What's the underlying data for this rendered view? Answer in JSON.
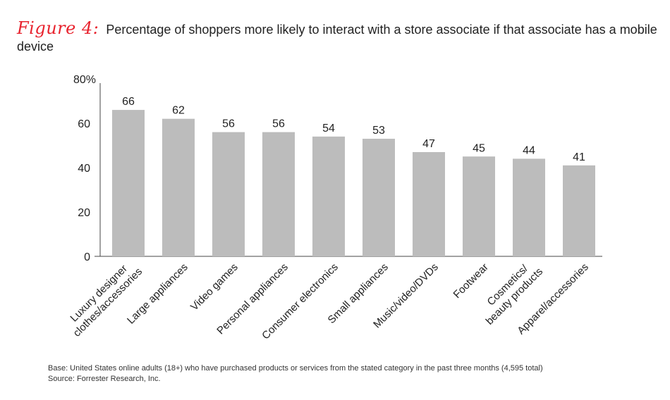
{
  "figure": {
    "label": "Figure 4:",
    "title": "Percentage of shoppers more likely to interact with a store associate if that associate has a mobile device"
  },
  "chart_data": {
    "type": "bar",
    "categories": [
      [
        "Luxury designer",
        "clothes/accessories"
      ],
      [
        "Large appliances"
      ],
      [
        "Video games"
      ],
      [
        "Personal appliances"
      ],
      [
        "Consumer electronics"
      ],
      [
        "Small appliances"
      ],
      [
        "Music/video/DVDs"
      ],
      [
        "Footwear"
      ],
      [
        "Cosmetics/",
        "beauty products"
      ],
      [
        "Apparel/accessories"
      ]
    ],
    "values": [
      66,
      62,
      56,
      56,
      54,
      53,
      47,
      45,
      44,
      41
    ],
    "data_labels": [
      "66",
      "62",
      "56",
      "56",
      "54",
      "53",
      "47",
      "45",
      "44",
      "41"
    ],
    "y_ticks": [
      0,
      20,
      40,
      60,
      80
    ],
    "y_tick_labels": [
      "0",
      "20",
      "40",
      "60",
      "80%"
    ],
    "ylim": [
      0,
      80
    ],
    "grid": false,
    "bar_color": "#bcbcbc"
  },
  "notes": {
    "base": "Base: United States online adults (18+) who have purchased products or services from the stated category in the past three months (4,595 total)",
    "source": "Source: Forrester Research, Inc."
  }
}
